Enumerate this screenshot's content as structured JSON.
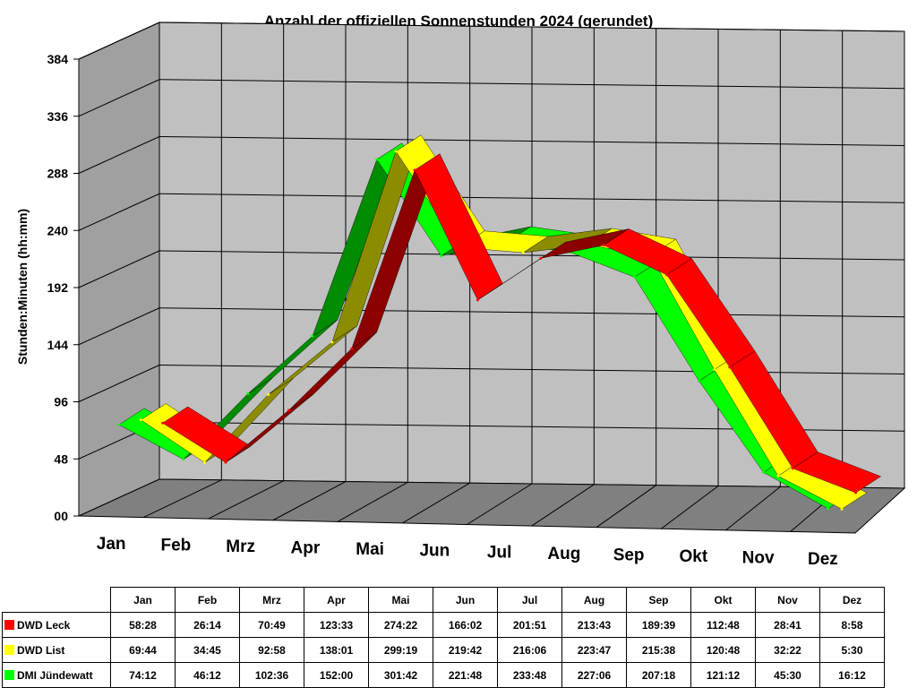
{
  "chart_data": {
    "type": "line",
    "title": "Anzahl der offiziellen Sonnenstunden 2024 (gerundet)",
    "ylabel": "Stunden:Minuten (hh:mm)",
    "xlabel": "",
    "ylim": [
      0,
      384
    ],
    "yticks": [
      "00",
      "48",
      "96",
      "144",
      "192",
      "240",
      "288",
      "336",
      "384"
    ],
    "categories": [
      "Jan",
      "Feb",
      "Mrz",
      "Apr",
      "Mai",
      "Jun",
      "Jul",
      "Aug",
      "Sep",
      "Okt",
      "Nov",
      "Dez"
    ],
    "series": [
      {
        "name": "DWD Leck",
        "color": "#ff0000",
        "labels": [
          "58:28",
          "26:14",
          "70:49",
          "123:33",
          "274:22",
          "166:02",
          "201:51",
          "213:43",
          "189:39",
          "112:48",
          "28:41",
          "8:58"
        ],
        "values": [
          58.47,
          26.23,
          70.82,
          123.55,
          274.37,
          166.03,
          201.85,
          213.72,
          189.65,
          112.8,
          28.68,
          8.97
        ]
      },
      {
        "name": "DWD List",
        "color": "#ffff00",
        "labels": [
          "69:44",
          "34:45",
          "92:58",
          "138:01",
          "299:19",
          "219:42",
          "216:06",
          "223:47",
          "215:38",
          "120:48",
          "32:22",
          "5:30"
        ],
        "values": [
          69.73,
          34.75,
          92.97,
          138.02,
          299.32,
          219.7,
          216.1,
          223.78,
          215.63,
          120.8,
          32.37,
          5.5
        ]
      },
      {
        "name": "DMI Jündewatt",
        "color": "#00ff00",
        "labels": [
          "74:12",
          "46:12",
          "102:36",
          "152:00",
          "301:42",
          "221:48",
          "233:48",
          "227:06",
          "207:18",
          "121:12",
          "45:30",
          "16:12"
        ],
        "values": [
          74.2,
          46.2,
          102.6,
          152.0,
          301.7,
          221.8,
          233.8,
          227.1,
          207.3,
          121.2,
          45.5,
          16.2
        ]
      }
    ],
    "legend": "table-below",
    "grid": true,
    "style": "3d-ribbon"
  }
}
